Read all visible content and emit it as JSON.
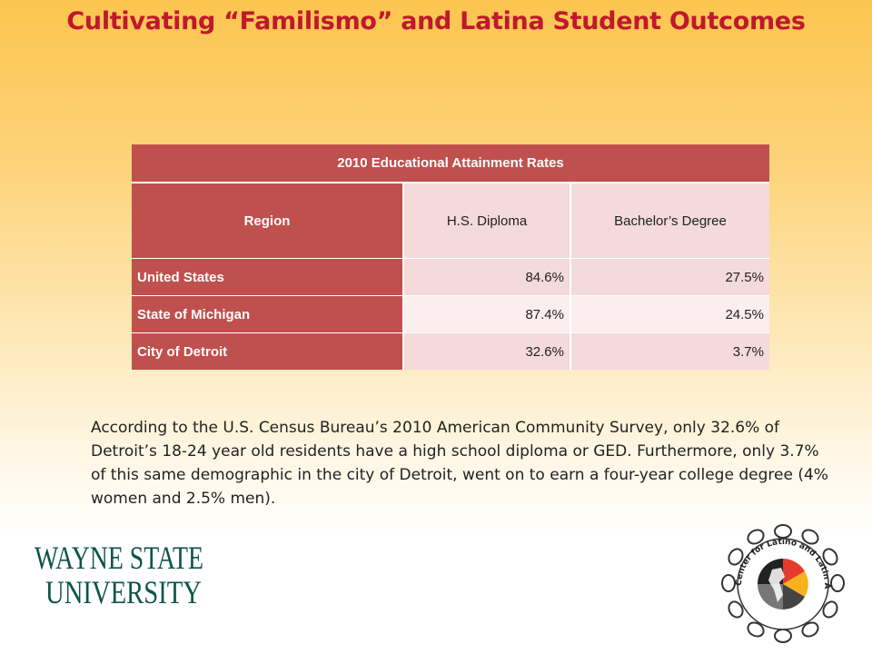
{
  "slide": {
    "title": "Cultivating “Familismo” and Latina Student Outcomes"
  },
  "table": {
    "caption": "2010 Educational Attainment Rates",
    "columns": [
      "Region",
      "H.S. Diploma",
      "Bachelor’s Degree"
    ],
    "rows": [
      {
        "region": "United States",
        "hs": "84.6%",
        "ba": "27.5%"
      },
      {
        "region": "State of Michigan",
        "hs": "87.4%",
        "ba": "24.5%"
      },
      {
        "region": "City of Detroit",
        "hs": "32.6%",
        "ba": "3.7%"
      }
    ]
  },
  "body_text": "According to the U.S. Census Bureau’s 2010 American Community Survey, only 32.6% of Detroit’s 18-24 year old residents have a high school diploma or GED. Furthermore, only 3.7% of this same demographic in the city of Detroit, went on to earn a four-year college degree (4% women and 2.5% men).",
  "logos": {
    "wsu_line1": "WAYNE STATE",
    "wsu_line2": "UNIVERSITY",
    "cla_text": "Center for Latino and Latin American Studies"
  },
  "colors": {
    "title": "#c0182e",
    "table_header": "#c0504d",
    "table_light": "#f4dada",
    "wsu_green": "#0c5449"
  }
}
